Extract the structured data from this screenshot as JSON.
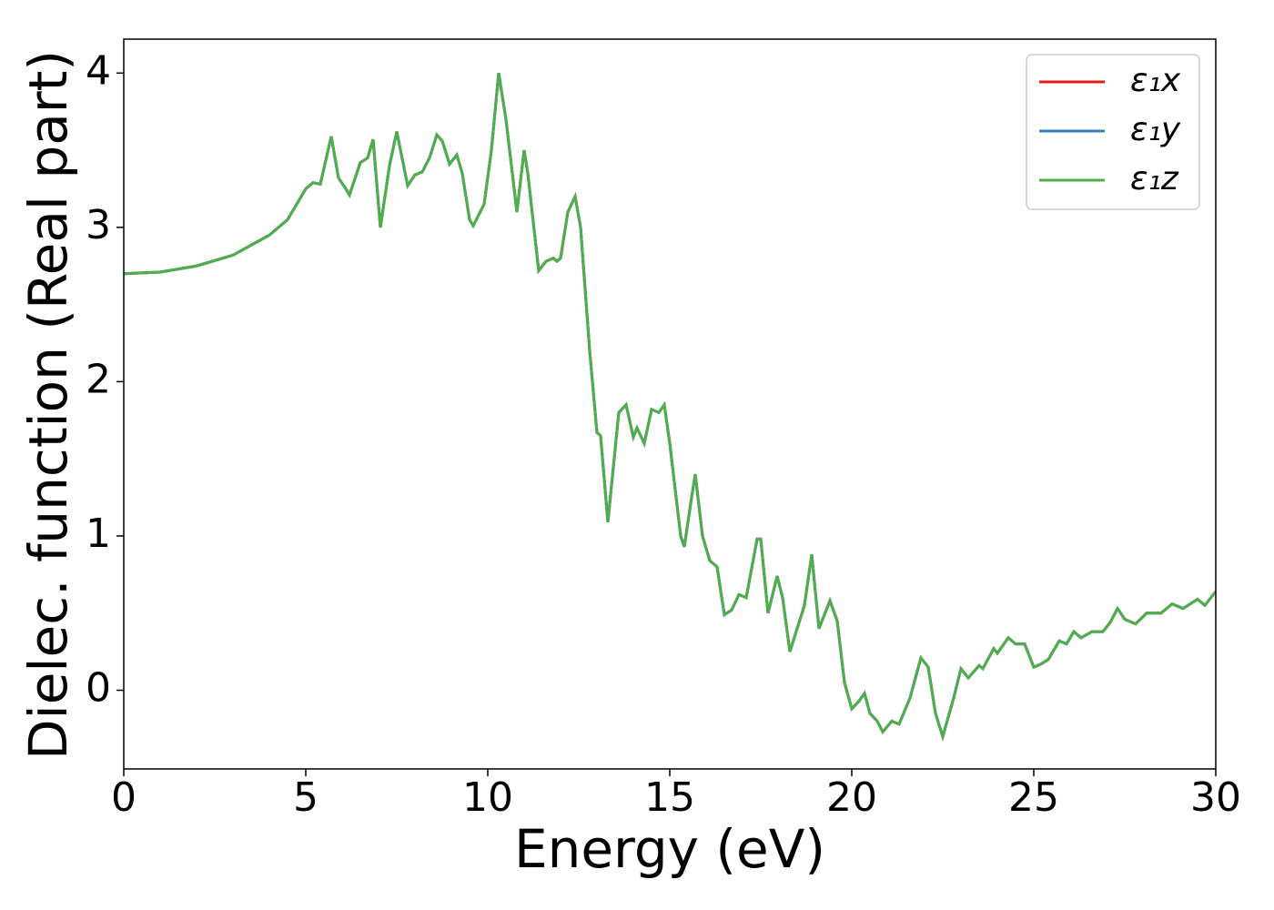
{
  "chart_data": {
    "type": "line",
    "xlabel": "Energy (eV)",
    "ylabel": "Dielec. function (Real part)",
    "xlim": [
      0,
      30
    ],
    "ylim": [
      -0.51,
      4.22
    ],
    "xticks": [
      0,
      5,
      10,
      15,
      20,
      25,
      30
    ],
    "yticks": [
      0,
      1,
      2,
      3,
      4
    ],
    "legend": "upper right",
    "grid": false,
    "x": [
      0,
      1,
      2,
      3,
      4,
      4.5,
      5,
      5.2,
      5.4,
      5.7,
      5.9,
      6.1,
      6.2,
      6.5,
      6.7,
      6.85,
      7.05,
      7.3,
      7.5,
      7.8,
      8,
      8.2,
      8.4,
      8.6,
      8.75,
      8.95,
      9.15,
      9.3,
      9.5,
      9.6,
      9.9,
      10.1,
      10.3,
      10.5,
      10.8,
      11,
      11.1,
      11.4,
      11.6,
      11.8,
      11.9,
      12,
      12.2,
      12.4,
      12.55,
      12.8,
      13,
      13.1,
      13.3,
      13.6,
      13.8,
      14,
      14.1,
      14.3,
      14.5,
      14.7,
      14.85,
      15,
      15.3,
      15.4,
      15.6,
      15.7,
      15.9,
      16.1,
      16.3,
      16.5,
      16.7,
      16.9,
      17.1,
      17.4,
      17.5,
      17.7,
      17.95,
      18.1,
      18.3,
      18.5,
      18.7,
      18.9,
      19.1,
      19.4,
      19.6,
      19.8,
      20,
      20.2,
      20.35,
      20.5,
      20.7,
      20.85,
      21.1,
      21.3,
      21.6,
      21.9,
      22.1,
      22.3,
      22.5,
      22.8,
      23,
      23.2,
      23.5,
      23.6,
      23.9,
      24,
      24.3,
      24.5,
      24.75,
      25,
      25.2,
      25.4,
      25.7,
      25.9,
      26.1,
      26.3,
      26.6,
      26.9,
      27.1,
      27.3,
      27.5,
      27.8,
      28.1,
      28.5,
      28.8,
      29.1,
      29.5,
      29.7,
      30
    ],
    "series": [
      {
        "name": "ε₁x",
        "color": "#e41a1c",
        "values": [
          2.7,
          2.71,
          2.75,
          2.82,
          2.95,
          3.05,
          3.25,
          3.29,
          3.28,
          3.59,
          3.32,
          3.25,
          3.21,
          3.42,
          3.45,
          3.57,
          3.0,
          3.4,
          3.62,
          3.27,
          3.34,
          3.36,
          3.45,
          3.6,
          3.56,
          3.41,
          3.47,
          3.35,
          3.05,
          3.01,
          3.15,
          3.5,
          4.0,
          3.7,
          3.1,
          3.5,
          3.35,
          2.72,
          2.78,
          2.8,
          2.78,
          2.8,
          3.1,
          3.2,
          3.0,
          2.2,
          1.67,
          1.65,
          1.09,
          1.8,
          1.85,
          1.64,
          1.7,
          1.6,
          1.82,
          1.8,
          1.85,
          1.6,
          1.0,
          0.93,
          1.25,
          1.4,
          1.0,
          0.84,
          0.8,
          0.49,
          0.52,
          0.62,
          0.6,
          0.98,
          0.98,
          0.5,
          0.74,
          0.6,
          0.25,
          0.4,
          0.55,
          0.88,
          0.4,
          0.58,
          0.45,
          0.05,
          -0.12,
          -0.07,
          -0.02,
          -0.15,
          -0.2,
          -0.27,
          -0.2,
          -0.22,
          -0.05,
          0.21,
          0.15,
          -0.15,
          -0.3,
          -0.05,
          0.14,
          0.08,
          0.16,
          0.14,
          0.27,
          0.24,
          0.34,
          0.3,
          0.3,
          0.15,
          0.17,
          0.2,
          0.32,
          0.3,
          0.38,
          0.34,
          0.38,
          0.38,
          0.44,
          0.53,
          0.46,
          0.43,
          0.5,
          0.5,
          0.56,
          0.53,
          0.59,
          0.55,
          0.64
        ]
      },
      {
        "name": "ε₁y",
        "color": "#377eb8",
        "values": [
          2.7,
          2.71,
          2.75,
          2.82,
          2.95,
          3.05,
          3.25,
          3.29,
          3.28,
          3.59,
          3.32,
          3.25,
          3.21,
          3.42,
          3.45,
          3.57,
          3.0,
          3.4,
          3.62,
          3.27,
          3.34,
          3.36,
          3.45,
          3.6,
          3.56,
          3.41,
          3.47,
          3.35,
          3.05,
          3.01,
          3.15,
          3.5,
          4.0,
          3.7,
          3.1,
          3.5,
          3.35,
          2.72,
          2.78,
          2.8,
          2.78,
          2.8,
          3.1,
          3.2,
          3.0,
          2.2,
          1.67,
          1.65,
          1.09,
          1.8,
          1.85,
          1.64,
          1.7,
          1.6,
          1.82,
          1.8,
          1.85,
          1.6,
          1.0,
          0.93,
          1.25,
          1.4,
          1.0,
          0.84,
          0.8,
          0.49,
          0.52,
          0.62,
          0.6,
          0.98,
          0.98,
          0.5,
          0.74,
          0.6,
          0.25,
          0.4,
          0.55,
          0.88,
          0.4,
          0.58,
          0.45,
          0.05,
          -0.12,
          -0.07,
          -0.02,
          -0.15,
          -0.2,
          -0.27,
          -0.2,
          -0.22,
          -0.05,
          0.21,
          0.15,
          -0.15,
          -0.3,
          -0.05,
          0.14,
          0.08,
          0.16,
          0.14,
          0.27,
          0.24,
          0.34,
          0.3,
          0.3,
          0.15,
          0.17,
          0.2,
          0.32,
          0.3,
          0.38,
          0.34,
          0.38,
          0.38,
          0.44,
          0.53,
          0.46,
          0.43,
          0.5,
          0.5,
          0.56,
          0.53,
          0.59,
          0.55,
          0.64
        ]
      },
      {
        "name": "ε₁z",
        "color": "#4daf4a",
        "values": [
          2.7,
          2.71,
          2.75,
          2.82,
          2.95,
          3.05,
          3.25,
          3.29,
          3.28,
          3.59,
          3.32,
          3.25,
          3.21,
          3.42,
          3.45,
          3.57,
          3.0,
          3.4,
          3.62,
          3.27,
          3.34,
          3.36,
          3.45,
          3.6,
          3.56,
          3.41,
          3.47,
          3.35,
          3.05,
          3.01,
          3.15,
          3.5,
          4.0,
          3.7,
          3.1,
          3.5,
          3.35,
          2.72,
          2.78,
          2.8,
          2.78,
          2.8,
          3.1,
          3.2,
          3.0,
          2.2,
          1.67,
          1.65,
          1.09,
          1.8,
          1.85,
          1.64,
          1.7,
          1.6,
          1.82,
          1.8,
          1.85,
          1.6,
          1.0,
          0.93,
          1.25,
          1.4,
          1.0,
          0.84,
          0.8,
          0.49,
          0.52,
          0.62,
          0.6,
          0.98,
          0.98,
          0.5,
          0.74,
          0.6,
          0.25,
          0.4,
          0.55,
          0.88,
          0.4,
          0.58,
          0.45,
          0.05,
          -0.12,
          -0.07,
          -0.02,
          -0.15,
          -0.2,
          -0.27,
          -0.2,
          -0.22,
          -0.05,
          0.21,
          0.15,
          -0.15,
          -0.3,
          -0.05,
          0.14,
          0.08,
          0.16,
          0.14,
          0.27,
          0.24,
          0.34,
          0.3,
          0.3,
          0.15,
          0.17,
          0.2,
          0.32,
          0.3,
          0.38,
          0.34,
          0.38,
          0.38,
          0.44,
          0.53,
          0.46,
          0.43,
          0.5,
          0.5,
          0.56,
          0.53,
          0.59,
          0.55,
          0.64
        ]
      }
    ]
  }
}
